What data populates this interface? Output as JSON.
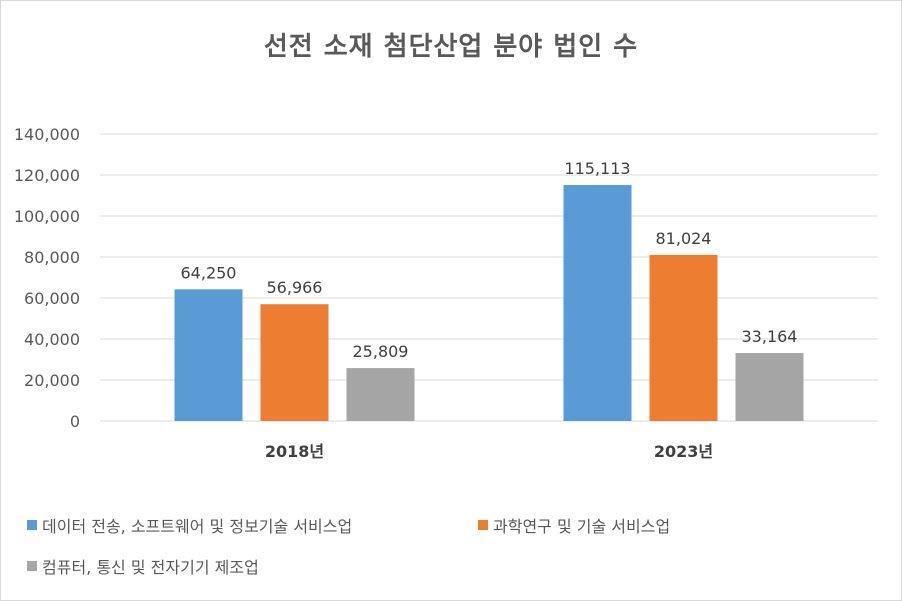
{
  "chart_data": {
    "type": "bar",
    "title": "선전 소재 첨단산업 분야 법인 수",
    "categories": [
      "2018년",
      "2023년"
    ],
    "series": [
      {
        "name": "데이터 전송, 소프트웨어 및 정보기술 서비스업",
        "color": "#5b9bd5",
        "values": [
          64250,
          115113
        ],
        "labels": [
          "64,250",
          "115,113"
        ]
      },
      {
        "name": "과학연구 및 기술 서비스업",
        "color": "#ed7d31",
        "values": [
          56966,
          81024
        ],
        "labels": [
          "56,966",
          "81,024"
        ]
      },
      {
        "name": "컴퓨터, 통신 및 전자기기 제조업",
        "color": "#a5a5a5",
        "values": [
          25809,
          33164
        ],
        "labels": [
          "25,809",
          "33,164"
        ]
      }
    ],
    "ylim": [
      0,
      140000
    ],
    "yticks": [
      0,
      20000,
      40000,
      60000,
      80000,
      100000,
      120000,
      140000
    ],
    "ytick_labels": [
      "0",
      "20,000",
      "40,000",
      "60,000",
      "80,000",
      "100,000",
      "120,000",
      "140,000"
    ],
    "grid": true,
    "legend_position": "bottom",
    "xlabel": "",
    "ylabel": ""
  }
}
